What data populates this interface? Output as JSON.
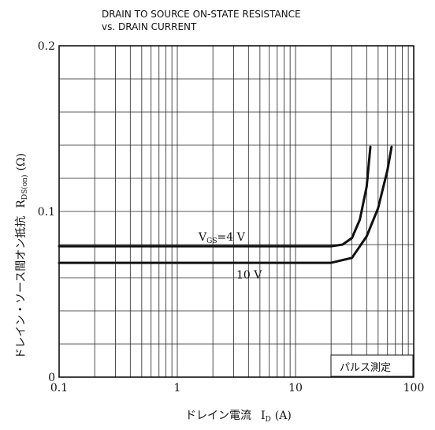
{
  "chart_data": {
    "type": "line",
    "title_line1": "DRAIN TO SOURCE ON-STATE RESISTANCE",
    "title_line2": "vs. DRAIN CURRENT",
    "ylabel_main": "ドレイン・ソース間オン抵抗",
    "ylabel_sym": "R",
    "ylabel_sub": "DS(on)",
    "ylabel_unit": "(Ω)",
    "xlabel_main": "ドレイン電流",
    "xlabel_sym": "I",
    "xlabel_sub": "D",
    "xlabel_unit": "(A)",
    "xscale": "log",
    "xlim": [
      0.1,
      100
    ],
    "ylim": [
      0,
      0.2
    ],
    "grid": true,
    "x_ticks": [
      {
        "value": 0.1,
        "label": "0.1"
      },
      {
        "value": 1,
        "label": "1"
      },
      {
        "value": 10,
        "label": "10"
      },
      {
        "value": 100,
        "label": "100"
      }
    ],
    "y_ticks": [
      {
        "value": 0,
        "label": "0"
      },
      {
        "value": 0.1,
        "label": "0.1"
      },
      {
        "value": 0.2,
        "label": "0.2"
      }
    ],
    "note": "パルス測定",
    "series": [
      {
        "name": "VGS=4 V",
        "label_parts": {
          "sym": "V",
          "sub": "GS",
          "rest": "=4 V"
        },
        "x": [
          0.1,
          1,
          10,
          20,
          25,
          30,
          35,
          40,
          43
        ],
        "y": [
          0.079,
          0.079,
          0.079,
          0.079,
          0.08,
          0.084,
          0.095,
          0.115,
          0.139
        ]
      },
      {
        "name": "10 V",
        "label_parts": {
          "sym": "",
          "sub": "",
          "rest": "10 V"
        },
        "x": [
          0.1,
          1,
          10,
          20,
          30,
          40,
          50,
          60,
          65
        ],
        "y": [
          0.069,
          0.069,
          0.069,
          0.069,
          0.072,
          0.085,
          0.102,
          0.125,
          0.139
        ]
      }
    ]
  }
}
